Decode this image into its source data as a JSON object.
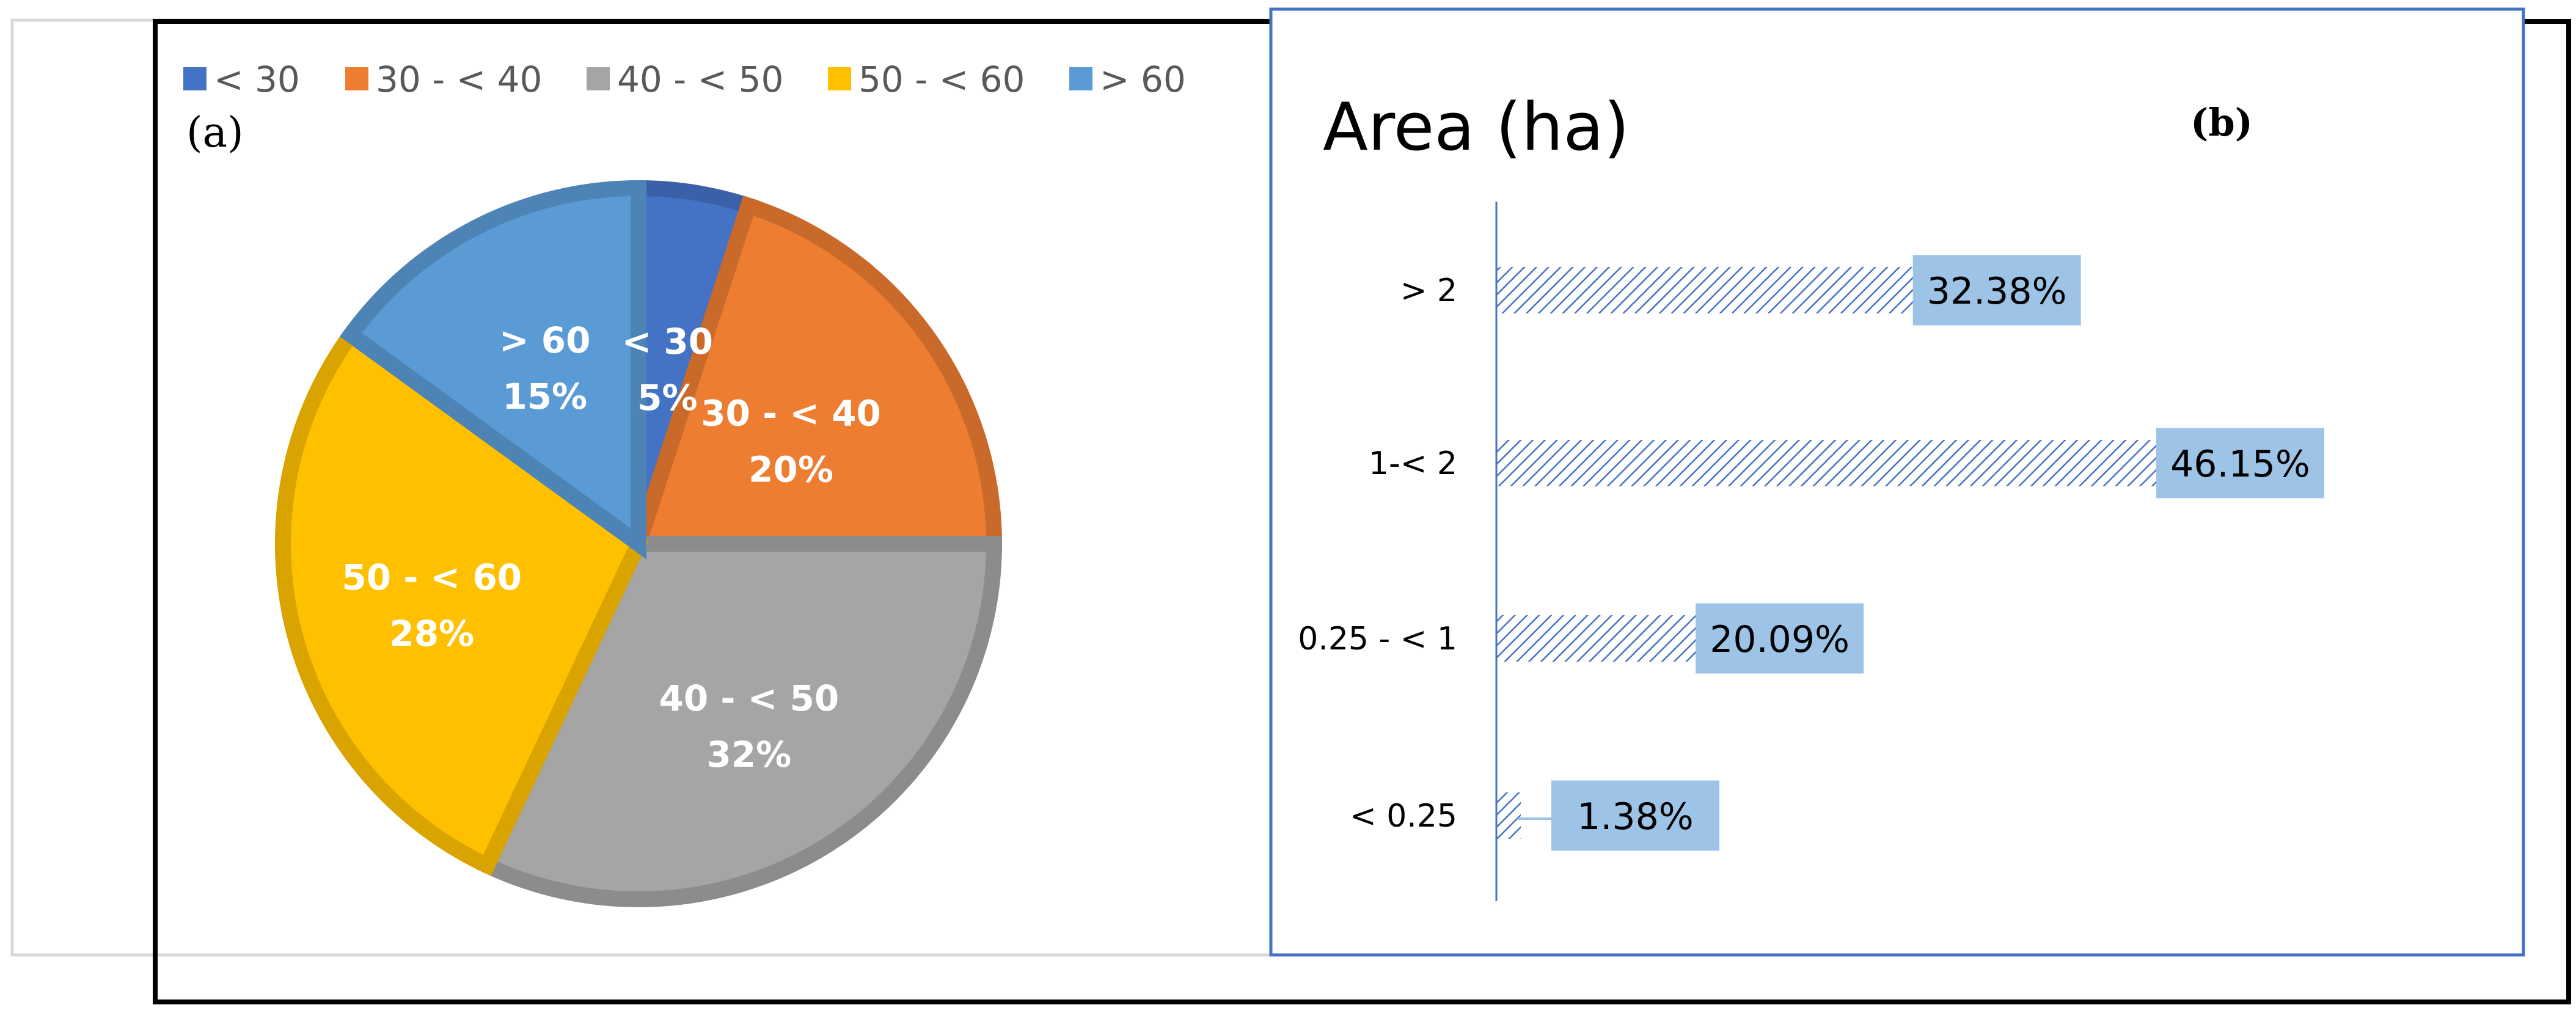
{
  "colors": {
    "lt30": "#4472C4",
    "30to40": "#ED7D31",
    "40to50": "#A5A5A5",
    "50to60": "#FFC000",
    "gt60": "#5B9BD5",
    "bar_hatch": "#4472C4",
    "bar_label_bg": "#9DC3E6",
    "frame": "#000000",
    "panel_b_border": "#4472C4"
  },
  "chart_data": [
    {
      "type": "pie",
      "panel_label": "(a)",
      "legend_position": "top",
      "categories": [
        "< 30",
        "30 - < 40",
        "40 - < 50",
        "50 - < 60",
        "> 60"
      ],
      "values": [
        5,
        20,
        32,
        28,
        15
      ],
      "value_labels": [
        "5%",
        "20%",
        "32%",
        "28%",
        "15%"
      ],
      "color_keys": [
        "lt30",
        "30to40",
        "40to50",
        "50to60",
        "gt60"
      ]
    },
    {
      "type": "bar",
      "orientation": "horizontal",
      "title": "Area (ha)",
      "panel_label": "(b)",
      "categories": [
        "> 2",
        "1-< 2",
        "0.25 - < 1",
        "< 0.25"
      ],
      "values": [
        32.38,
        46.15,
        20.09,
        1.38
      ],
      "value_labels": [
        "32.38%",
        "46.15%",
        "20.09%",
        "1.38%"
      ],
      "xlim": [
        0,
        55
      ],
      "grid": false
    }
  ]
}
